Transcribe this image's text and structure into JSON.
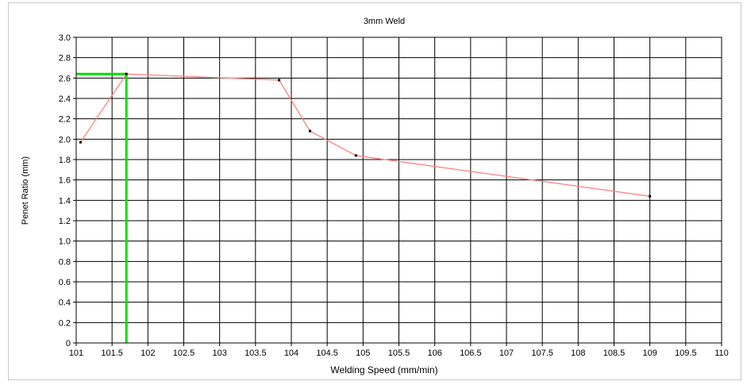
{
  "chart_data": {
    "type": "line",
    "title": "3mm Weld",
    "xlabel": "Welding Speed (mm/min)",
    "ylabel": "Penet Ratio (mm)",
    "xlim": [
      101,
      110
    ],
    "ylim": [
      0,
      3.0
    ],
    "x_ticks": [
      "101",
      "101.5",
      "102",
      "102.5",
      "103",
      "103.5",
      "104",
      "104.5",
      "105",
      "105.5",
      "106",
      "106.5",
      "107",
      "107.5",
      "108",
      "108.5",
      "109",
      "109.5",
      "110"
    ],
    "y_ticks": [
      "0",
      "0.2",
      "0.4",
      "0.6",
      "0.8",
      "1.0",
      "1.2",
      "1.4",
      "1.6",
      "1.8",
      "2.0",
      "2.2",
      "2.4",
      "2.6",
      "2.8",
      "3.0"
    ],
    "grid": true,
    "series": [
      {
        "color": "#ff8080",
        "marker_color": "#000000",
        "points": [
          {
            "x": 101.06,
            "y": 1.97
          },
          {
            "x": 101.7,
            "y": 2.64
          },
          {
            "x": 103.83,
            "y": 2.58
          },
          {
            "x": 104.26,
            "y": 2.08
          },
          {
            "x": 104.9,
            "y": 1.84
          },
          {
            "x": 109.0,
            "y": 1.44
          }
        ]
      }
    ],
    "reference_lines": {
      "color": "#00e000",
      "x": 101.7,
      "y": 2.64
    }
  }
}
